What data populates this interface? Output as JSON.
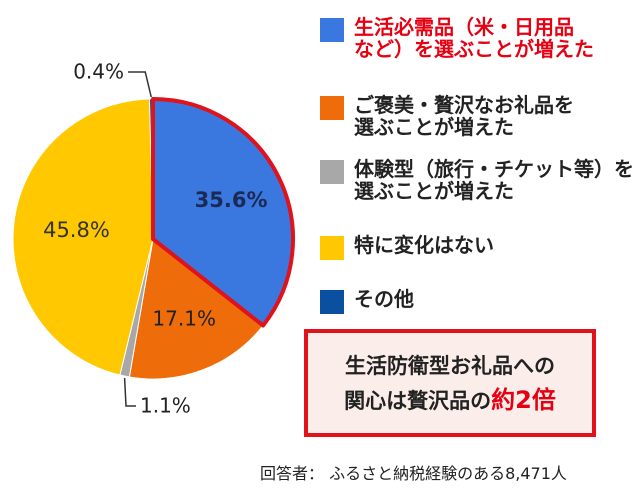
{
  "chart_data": {
    "type": "pie",
    "series": [
      {
        "name": "生活必需品（米・日用品\nなど）を選ぶことが増えた",
        "value": 35.6,
        "label": "35.6%",
        "color": "#3a78e0",
        "highlight": true
      },
      {
        "name": "ご褒美・贅沢なお礼品を\n選ぶことが増えた",
        "value": 17.1,
        "label": "17.1%",
        "color": "#ef6c0a"
      },
      {
        "name": "体験型（旅行・チケット等）を\n選ぶことが増えた",
        "value": 1.1,
        "label": "1.1%",
        "color": "#a8a8a8"
      },
      {
        "name": "特に変化はない",
        "value": 45.8,
        "label": "45.8%",
        "color": "#ffc800"
      },
      {
        "name": "その他",
        "value": 0.4,
        "label": "0.4%",
        "color": "#0a4fa0"
      }
    ],
    "highlight_border_color": "#e0121c"
  },
  "callout": {
    "line1": "生活防衛型お礼品への",
    "line2_prefix": "関心は贅沢品の",
    "line2_emphasis": "約2倍"
  },
  "footnote": "回答者： ふるさと納税経験のある8,471人"
}
